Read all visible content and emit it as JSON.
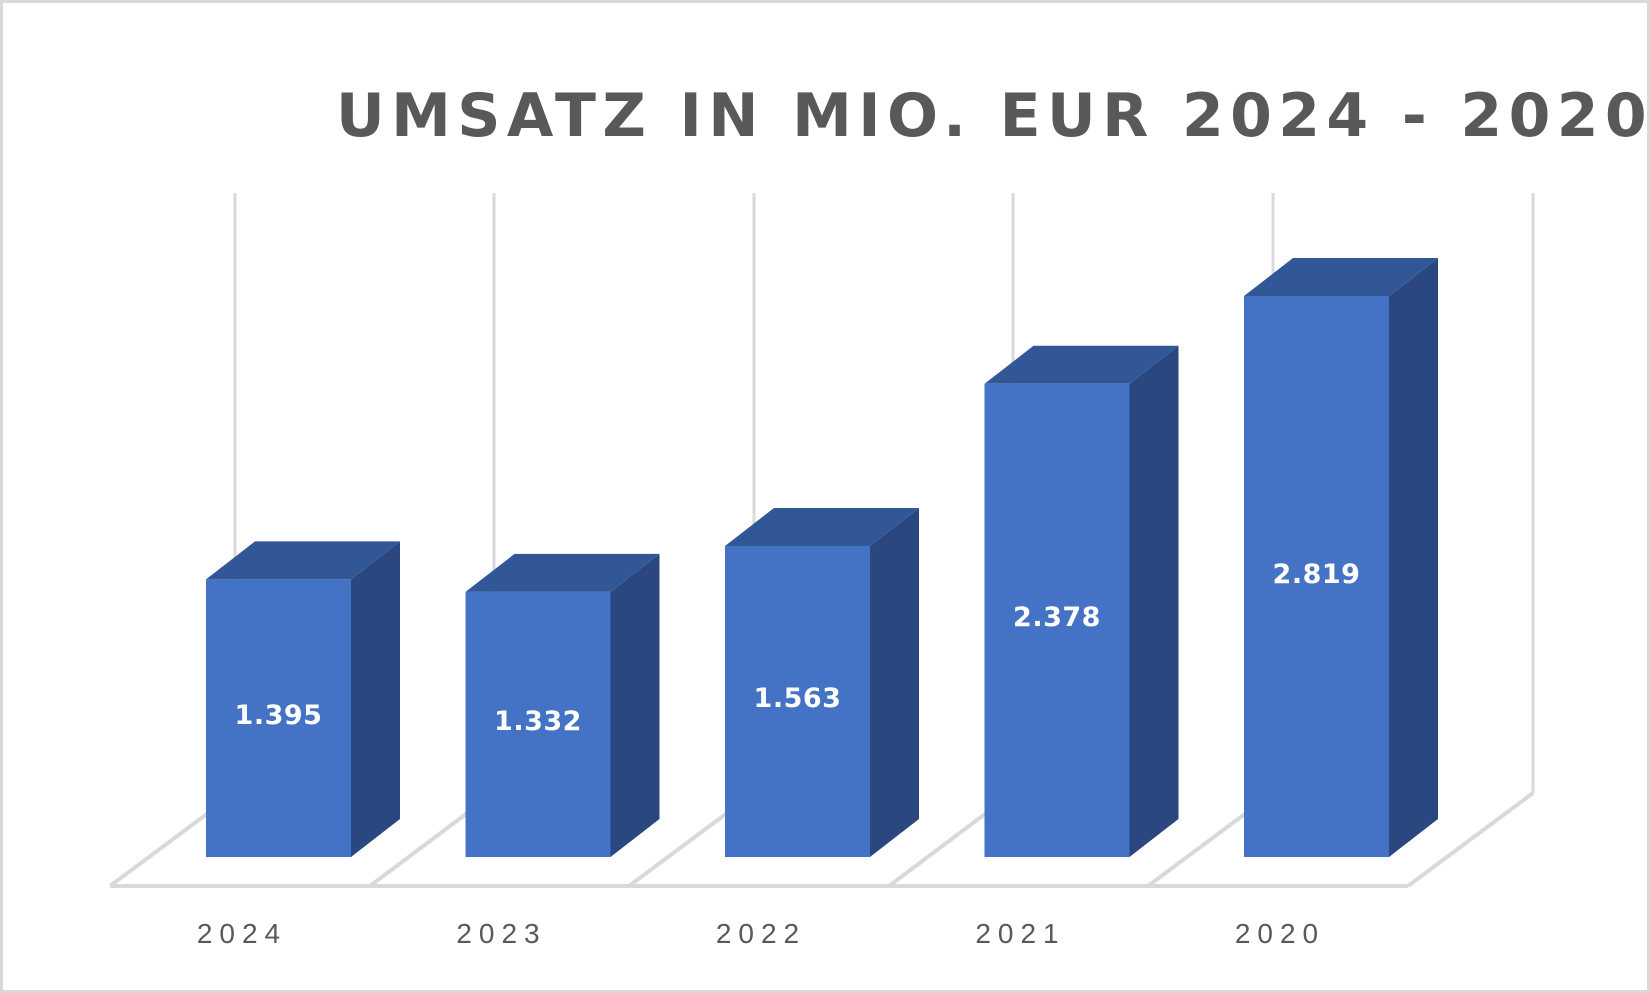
{
  "chart_data": {
    "type": "bar",
    "style": "3d-column",
    "title": "UMSATZ IN MIO. EUR 2024 - 2020",
    "categories": [
      "2024",
      "2023",
      "2022",
      "2021",
      "2020"
    ],
    "values": [
      1.395,
      1.332,
      1.563,
      2.378,
      2.819
    ],
    "data_labels": [
      "1.395",
      "1.332",
      "1.563",
      "2.378",
      "2.819"
    ],
    "xlabel": "",
    "ylabel": "",
    "y_axis_visible": false,
    "grid": "vertical lines between categories",
    "legend": "none",
    "colors": {
      "bar_front": "#4472C4",
      "bar_top": "#325796",
      "bar_side": "#2A487F",
      "grid": "#d9d9d9",
      "text": "#595959"
    }
  }
}
